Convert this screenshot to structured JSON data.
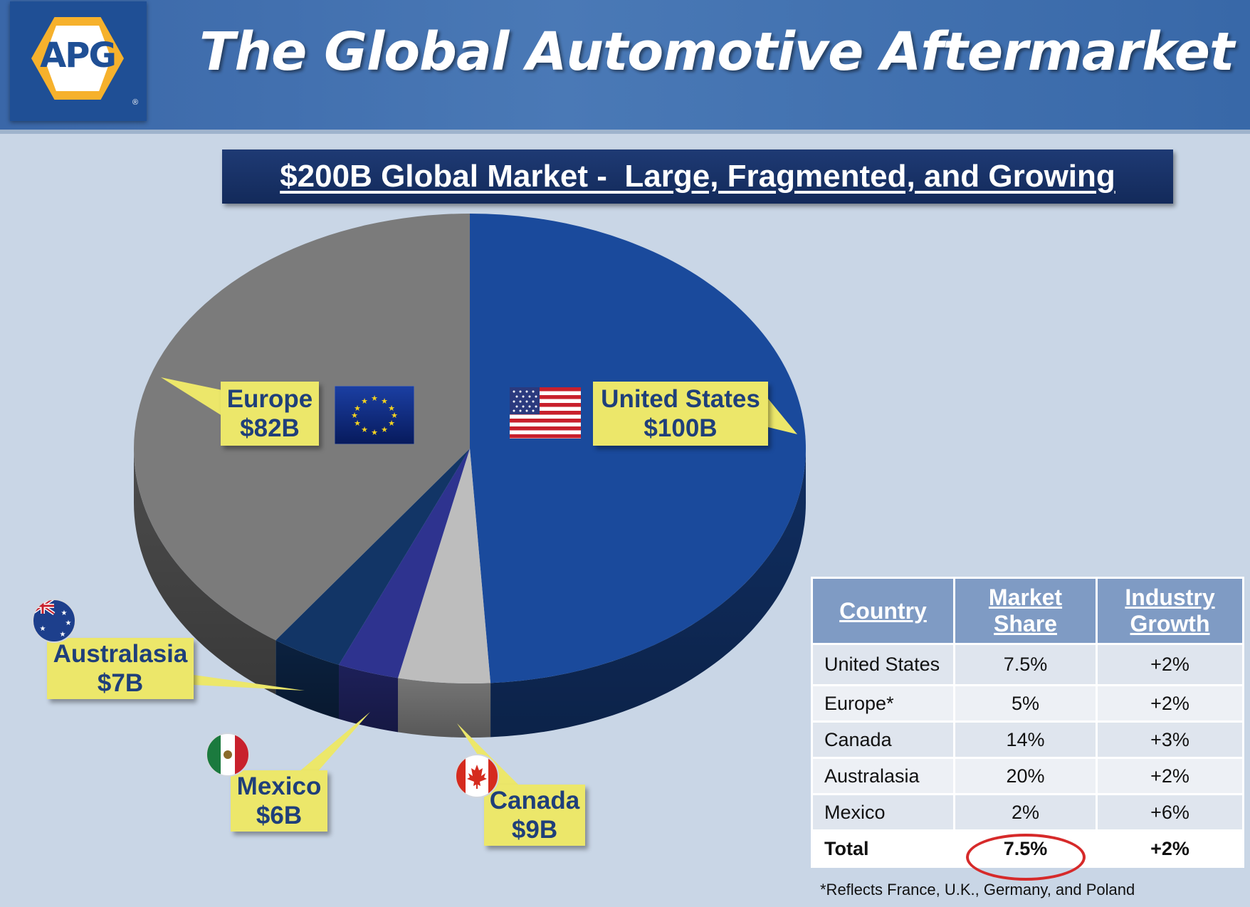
{
  "header": {
    "logo_text": "APG",
    "logo_reg": "®",
    "title": "The Global Automotive Aftermarket"
  },
  "subtitle": "$200B Global Market -  Large, Fragmented, and Growing",
  "chart_data": {
    "type": "pie",
    "title": "$200B Global Market -  Large, Fragmented, and Growing",
    "unit": "$B",
    "slices": [
      {
        "label": "United States",
        "value": 100,
        "display": "$100B",
        "color": "#1a4a9c"
      },
      {
        "label": "Canada",
        "value": 9,
        "display": "$9B",
        "color": "#bdbdbd"
      },
      {
        "label": "Mexico",
        "value": 6,
        "display": "$6B",
        "color": "#2e338f"
      },
      {
        "label": "Australasia",
        "value": 7,
        "display": "$7B",
        "color": "#123566"
      },
      {
        "label": "Europe",
        "value": 82,
        "display": "$82B",
        "color": "#7b7b7b"
      }
    ]
  },
  "callouts": {
    "us": {
      "name": "United States",
      "value": "$100B"
    },
    "europe": {
      "name": "Europe",
      "value": "$82B"
    },
    "australasia": {
      "name": "Australasia",
      "value": "$7B"
    },
    "mexico": {
      "name": "Mexico",
      "value": "$6B"
    },
    "canada": {
      "name": "Canada",
      "value": "$9B"
    }
  },
  "table": {
    "headers": [
      "Country",
      "Market Share",
      "Industry Growth"
    ],
    "rows": [
      [
        "United States",
        "7.5%",
        "+2%"
      ],
      [
        "Europe*",
        "5%",
        "+2%"
      ],
      [
        "Canada",
        "14%",
        "+3%"
      ],
      [
        "Australasia",
        "20%",
        "+2%"
      ],
      [
        "Mexico",
        "2%",
        "+6%"
      ],
      [
        "Total",
        "7.5%",
        "+2%"
      ]
    ]
  },
  "footnote": "*Reflects France, U.K., Germany, and Poland",
  "highlight_color": "#d62a2a"
}
